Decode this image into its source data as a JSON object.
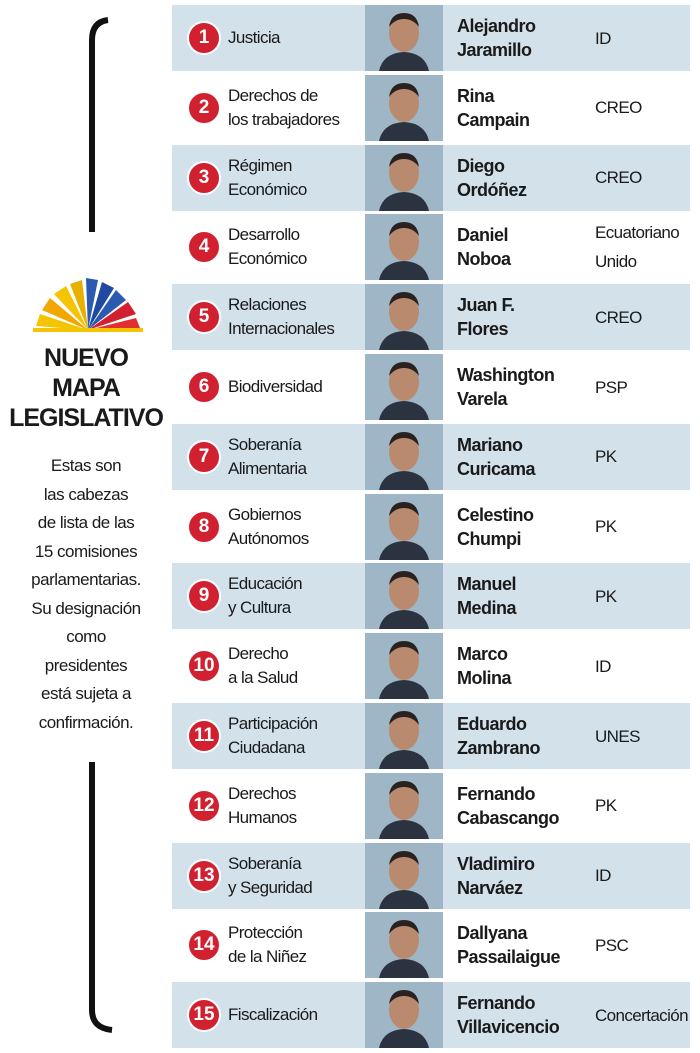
{
  "title": [
    "NUEVO",
    "MAPA",
    "LEGISLATIVO"
  ],
  "description": [
    "Estas son",
    "las cabezas",
    "de lista de las",
    "15 comisiones",
    "parlamentarias.",
    "Su designación",
    "como",
    "presidentes",
    "está sujeta a",
    "confirmación."
  ],
  "rows": [
    {
      "num": 1,
      "commission": [
        "Justicia"
      ],
      "name": [
        "Alejandro",
        "Jaramillo"
      ],
      "party": [
        "ID"
      ]
    },
    {
      "num": 2,
      "commission": [
        "Derechos de",
        "los trabajadores"
      ],
      "name": [
        "Rina",
        "Campain"
      ],
      "party": [
        "CREO"
      ]
    },
    {
      "num": 3,
      "commission": [
        "Régimen",
        "Económico"
      ],
      "name": [
        "Diego",
        "Ordóñez"
      ],
      "party": [
        "CREO"
      ]
    },
    {
      "num": 4,
      "commission": [
        "Desarrollo",
        "Económico"
      ],
      "name": [
        "Daniel",
        "Noboa"
      ],
      "party": [
        "Ecuatoriano",
        "Unido"
      ]
    },
    {
      "num": 5,
      "commission": [
        "Relaciones",
        "Internacionales"
      ],
      "name": [
        "Juan F.",
        "Flores"
      ],
      "party": [
        "CREO"
      ]
    },
    {
      "num": 6,
      "commission": [
        "Biodiversidad"
      ],
      "name": [
        "Washington",
        "Varela"
      ],
      "party": [
        "PSP"
      ]
    },
    {
      "num": 7,
      "commission": [
        "Soberanía",
        "Alimentaria"
      ],
      "name": [
        "Mariano",
        "Curicama"
      ],
      "party": [
        "PK"
      ]
    },
    {
      "num": 8,
      "commission": [
        "Gobiernos",
        "Autónomos"
      ],
      "name": [
        "Celestino",
        "Chumpi"
      ],
      "party": [
        "PK"
      ]
    },
    {
      "num": 9,
      "commission": [
        "Educación",
        "y Cultura"
      ],
      "name": [
        "Manuel",
        "Medina"
      ],
      "party": [
        "PK"
      ]
    },
    {
      "num": 10,
      "commission": [
        "Derecho",
        "a la Salud"
      ],
      "name": [
        "Marco",
        "Molina"
      ],
      "party": [
        "ID"
      ]
    },
    {
      "num": 11,
      "commission": [
        "Participación",
        "Ciudadana"
      ],
      "name": [
        "Eduardo",
        "Zambrano"
      ],
      "party": [
        "UNES"
      ]
    },
    {
      "num": 12,
      "commission": [
        "Derechos",
        "Humanos"
      ],
      "name": [
        "Fernando",
        "Cabascango"
      ],
      "party": [
        "PK"
      ]
    },
    {
      "num": 13,
      "commission": [
        "Soberanía",
        "y Seguridad"
      ],
      "name": [
        "Vladimiro",
        "Narváez"
      ],
      "party": [
        "ID"
      ]
    },
    {
      "num": 14,
      "commission": [
        "Protección",
        "de la Niñez"
      ],
      "name": [
        "Dallyana",
        "Passailaigue"
      ],
      "party": [
        "PSC"
      ]
    },
    {
      "num": 15,
      "commission": [
        "Fiscalización"
      ],
      "name": [
        "Fernando",
        "Villavicencio"
      ],
      "party": [
        "Concertación"
      ]
    }
  ]
}
